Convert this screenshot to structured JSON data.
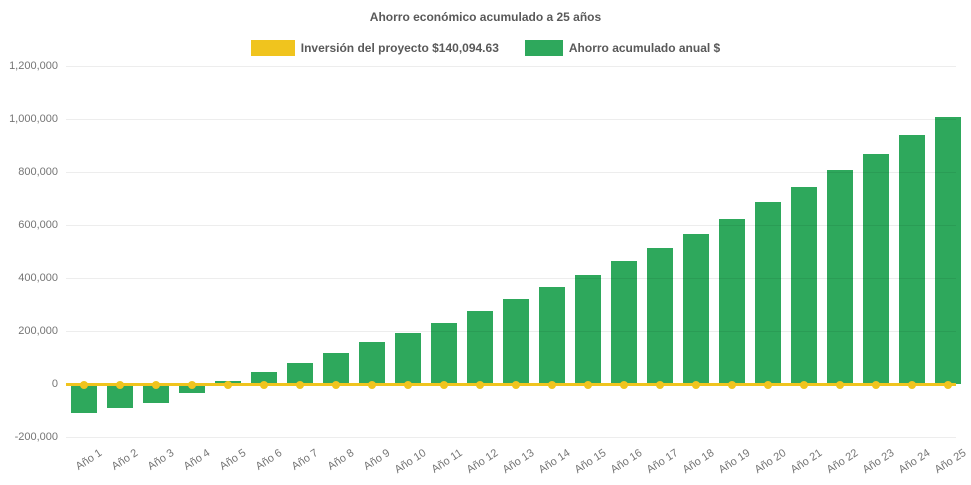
{
  "title": "Ahorro económico acumulado a 25 años",
  "legend": [
    {
      "label": "Inversión del proyecto $140,094.63",
      "color": "#F0C41E",
      "series_type": "line"
    },
    {
      "label": "Ahorro acumulado anual $",
      "color": "#2EA85C",
      "series_type": "bar"
    }
  ],
  "colors": {
    "bar_green": "#2EA85C",
    "line_yellow": "#F0C41E",
    "title_text": "#595959",
    "axis_text": "#757575",
    "background": "#ffffff"
  },
  "chart_data": {
    "type": "bar",
    "title": "Ahorro económico acumulado a 25 años",
    "categories": [
      "Año 1",
      "Año 2",
      "Año 3",
      "Año 4",
      "Año 5",
      "Año 6",
      "Año 7",
      "Año 8",
      "Año 9",
      "Año 10",
      "Año 11",
      "Año 12",
      "Año 13",
      "Año 14",
      "Año 15",
      "Año 16",
      "Año 17",
      "Año 18",
      "Año 19",
      "Año 20",
      "Año 21",
      "Año 22",
      "Año 23",
      "Año 24",
      "Año 25"
    ],
    "series": [
      {
        "name": "Ahorro acumulado anual $",
        "type": "bar",
        "color": "#2EA85C",
        "values": [
          -110000,
          -92000,
          -70000,
          -34000,
          12000,
          45000,
          80000,
          118000,
          157000,
          193000,
          232000,
          275000,
          320000,
          366000,
          412000,
          465000,
          512000,
          566000,
          621000,
          685000,
          743000,
          808000,
          869000,
          938000,
          1008000
        ]
      },
      {
        "name": "Inversión del proyecto $140,094.63",
        "type": "line",
        "color": "#F0C41E",
        "investment_amount": 140094.63,
        "drawn_at_value": 0,
        "markers": "circle at every category"
      }
    ],
    "xlabel": "",
    "ylabel": "",
    "ylim": [
      -200000,
      1200000
    ],
    "ytick_step": 200000,
    "yticks": [
      {
        "value": 1200000,
        "label": "1,200,000"
      },
      {
        "value": 1000000,
        "label": "1,000,000"
      },
      {
        "value": 800000,
        "label": "800,000"
      },
      {
        "value": 600000,
        "label": "600,000"
      },
      {
        "value": 400000,
        "label": "400,000"
      },
      {
        "value": 200000,
        "label": "200,000"
      },
      {
        "value": 0,
        "label": "0"
      },
      {
        "value": -200000,
        "label": "-200,000"
      }
    ],
    "grid": "very faint horizontal gridlines",
    "legend_position": "top center",
    "x_tick_label_rotation_deg": -33
  }
}
